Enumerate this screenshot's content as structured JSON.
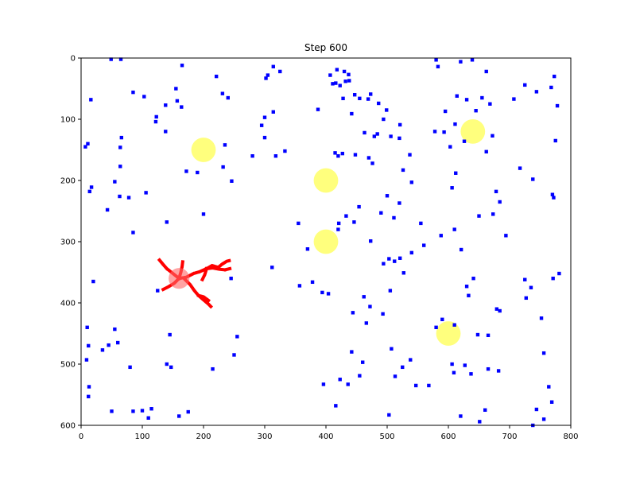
{
  "chart_data": {
    "type": "scatter",
    "title": "Step 600",
    "xlabel": "",
    "ylabel": "",
    "xlim": [
      0,
      800
    ],
    "ylim": [
      600,
      0
    ],
    "y_inverted": true,
    "grid": false,
    "xticks": [
      0,
      100,
      200,
      300,
      400,
      500,
      600,
      700,
      800
    ],
    "yticks": [
      0,
      100,
      200,
      300,
      400,
      500,
      600
    ],
    "colors": {
      "particles": "#0000ff",
      "targets": "#ffff66",
      "structure": "#ff0000",
      "seed": "#ff6666",
      "axes": "#000000",
      "background": "#ffffff"
    },
    "targets": [
      {
        "x": 200,
        "y": 150,
        "r": 20
      },
      {
        "x": 400,
        "y": 200,
        "r": 20
      },
      {
        "x": 400,
        "y": 300,
        "r": 20
      },
      {
        "x": 640,
        "y": 120,
        "r": 20
      },
      {
        "x": 600,
        "y": 450,
        "r": 20
      }
    ],
    "seed": {
      "x": 160,
      "y": 360,
      "r": 17
    },
    "structure_paths": [
      [
        [
          160,
          360
        ],
        [
          150,
          352
        ],
        [
          140,
          344
        ],
        [
          133,
          336
        ],
        [
          128,
          330
        ]
      ],
      [
        [
          160,
          360
        ],
        [
          152,
          368
        ],
        [
          142,
          374
        ],
        [
          134,
          378
        ]
      ],
      [
        [
          160,
          360
        ],
        [
          163,
          350
        ],
        [
          165,
          340
        ],
        [
          166,
          333
        ]
      ],
      [
        [
          160,
          360
        ],
        [
          172,
          358
        ],
        [
          184,
          352
        ],
        [
          194,
          349
        ],
        [
          205,
          344
        ],
        [
          214,
          339
        ],
        [
          224,
          342
        ],
        [
          230,
          337
        ],
        [
          238,
          332
        ],
        [
          242,
          331
        ]
      ],
      [
        [
          205,
          344
        ],
        [
          215,
          343
        ],
        [
          226,
          345
        ],
        [
          235,
          346
        ],
        [
          243,
          344
        ]
      ],
      [
        [
          170,
          362
        ],
        [
          178,
          370
        ],
        [
          185,
          380
        ],
        [
          192,
          388
        ],
        [
          200,
          395
        ],
        [
          208,
          402
        ],
        [
          212,
          406
        ]
      ],
      [
        [
          192,
          388
        ],
        [
          200,
          390
        ],
        [
          208,
          396
        ]
      ],
      [
        [
          205,
          344
        ],
        [
          202,
          354
        ],
        [
          198,
          362
        ]
      ]
    ],
    "particles": [
      [
        7,
        145
      ],
      [
        11,
        140
      ],
      [
        16,
        68
      ],
      [
        14,
        218
      ],
      [
        17,
        211
      ],
      [
        20,
        365
      ],
      [
        10,
        440
      ],
      [
        12,
        470
      ],
      [
        9,
        493
      ],
      [
        13,
        537
      ],
      [
        12,
        553
      ],
      [
        49,
        2
      ],
      [
        65,
        2
      ],
      [
        85,
        56
      ],
      [
        103,
        63
      ],
      [
        66,
        130
      ],
      [
        64,
        146
      ],
      [
        64,
        177
      ],
      [
        55,
        202
      ],
      [
        63,
        226
      ],
      [
        43,
        248
      ],
      [
        78,
        228
      ],
      [
        85,
        285
      ],
      [
        106,
        220
      ],
      [
        123,
        96
      ],
      [
        122,
        104
      ],
      [
        138,
        77
      ],
      [
        155,
        50
      ],
      [
        157,
        70
      ],
      [
        164,
        80
      ],
      [
        165,
        12
      ],
      [
        138,
        120
      ],
      [
        140,
        268
      ],
      [
        221,
        30
      ],
      [
        231,
        58
      ],
      [
        240,
        65
      ],
      [
        235,
        142
      ],
      [
        232,
        178
      ],
      [
        246,
        201
      ],
      [
        245,
        360
      ],
      [
        172,
        185
      ],
      [
        190,
        187
      ],
      [
        200,
        255
      ],
      [
        125,
        380
      ],
      [
        140,
        500
      ],
      [
        145,
        452
      ],
      [
        147,
        505
      ],
      [
        160,
        585
      ],
      [
        175,
        578
      ],
      [
        215,
        508
      ],
      [
        250,
        485
      ],
      [
        255,
        455
      ],
      [
        100,
        576
      ],
      [
        110,
        588
      ],
      [
        115,
        573
      ],
      [
        80,
        505
      ],
      [
        85,
        577
      ],
      [
        35,
        477
      ],
      [
        45,
        469
      ],
      [
        55,
        443
      ],
      [
        60,
        465
      ],
      [
        50,
        577
      ],
      [
        302,
        33
      ],
      [
        305,
        28
      ],
      [
        314,
        14
      ],
      [
        325,
        22
      ],
      [
        300,
        97
      ],
      [
        314,
        88
      ],
      [
        295,
        110
      ],
      [
        300,
        130
      ],
      [
        318,
        160
      ],
      [
        333,
        152
      ],
      [
        280,
        160
      ],
      [
        312,
        342
      ],
      [
        355,
        270
      ],
      [
        357,
        372
      ],
      [
        370,
        312
      ],
      [
        378,
        366
      ],
      [
        394,
        383
      ],
      [
        404,
        385
      ],
      [
        411,
        42
      ],
      [
        418,
        19
      ],
      [
        423,
        45
      ],
      [
        430,
        22
      ],
      [
        428,
        66
      ],
      [
        437,
        27
      ],
      [
        438,
        37
      ],
      [
        416,
        41
      ],
      [
        432,
        38
      ],
      [
        387,
        84
      ],
      [
        407,
        28
      ],
      [
        442,
        91
      ],
      [
        447,
        60
      ],
      [
        455,
        66
      ],
      [
        469,
        67
      ],
      [
        473,
        59
      ],
      [
        486,
        74
      ],
      [
        479,
        128
      ],
      [
        484,
        124
      ],
      [
        494,
        100
      ],
      [
        499,
        85
      ],
      [
        506,
        128
      ],
      [
        521,
        109
      ],
      [
        537,
        158
      ],
      [
        526,
        183
      ],
      [
        540,
        203
      ],
      [
        520,
        131
      ],
      [
        415,
        155
      ],
      [
        420,
        160
      ],
      [
        427,
        156
      ],
      [
        463,
        122
      ],
      [
        448,
        158
      ],
      [
        476,
        172
      ],
      [
        470,
        163
      ],
      [
        490,
        253
      ],
      [
        500,
        225
      ],
      [
        520,
        237
      ],
      [
        511,
        261
      ],
      [
        555,
        270
      ],
      [
        560,
        306
      ],
      [
        540,
        318
      ],
      [
        494,
        336
      ],
      [
        503,
        328
      ],
      [
        512,
        332
      ],
      [
        521,
        327
      ],
      [
        527,
        351
      ],
      [
        505,
        380
      ],
      [
        473,
        299
      ],
      [
        454,
        243
      ],
      [
        446,
        268
      ],
      [
        433,
        258
      ],
      [
        421,
        270
      ],
      [
        420,
        280
      ],
      [
        462,
        390
      ],
      [
        444,
        416
      ],
      [
        472,
        406
      ],
      [
        466,
        433
      ],
      [
        493,
        418
      ],
      [
        507,
        475
      ],
      [
        525,
        505
      ],
      [
        538,
        493
      ],
      [
        547,
        535
      ],
      [
        513,
        520
      ],
      [
        460,
        497
      ],
      [
        455,
        519
      ],
      [
        442,
        480
      ],
      [
        423,
        525
      ],
      [
        416,
        568
      ],
      [
        396,
        533
      ],
      [
        436,
        533
      ],
      [
        503,
        583
      ],
      [
        568,
        535
      ],
      [
        588,
        290
      ],
      [
        603,
        145
      ],
      [
        614,
        62
      ],
      [
        630,
        68
      ],
      [
        610,
        280
      ],
      [
        621,
        313
      ],
      [
        655,
        65
      ],
      [
        668,
        75
      ],
      [
        672,
        127
      ],
      [
        662,
        153
      ],
      [
        650,
        258
      ],
      [
        673,
        255
      ],
      [
        684,
        235
      ],
      [
        694,
        290
      ],
      [
        678,
        218
      ],
      [
        707,
        67
      ],
      [
        725,
        44
      ],
      [
        744,
        55
      ],
      [
        717,
        180
      ],
      [
        738,
        198
      ],
      [
        768,
        48
      ],
      [
        773,
        30
      ],
      [
        778,
        78
      ],
      [
        775,
        135
      ],
      [
        770,
        223
      ],
      [
        772,
        228
      ],
      [
        781,
        352
      ],
      [
        771,
        360
      ],
      [
        752,
        425
      ],
      [
        727,
        392
      ],
      [
        735,
        375
      ],
      [
        725,
        362
      ],
      [
        756,
        482
      ],
      [
        764,
        537
      ],
      [
        769,
        562
      ],
      [
        744,
        574
      ],
      [
        756,
        590
      ],
      [
        738,
        600
      ],
      [
        641,
        360
      ],
      [
        630,
        373
      ],
      [
        633,
        388
      ],
      [
        610,
        436
      ],
      [
        590,
        427
      ],
      [
        580,
        440
      ],
      [
        606,
        500
      ],
      [
        609,
        514
      ],
      [
        627,
        502
      ],
      [
        637,
        516
      ],
      [
        651,
        594
      ],
      [
        660,
        575
      ],
      [
        665,
        453
      ],
      [
        665,
        508
      ],
      [
        679,
        410
      ],
      [
        682,
        511
      ],
      [
        684,
        413
      ],
      [
        648,
        452
      ],
      [
        620,
        585
      ],
      [
        580,
        3
      ],
      [
        583,
        14
      ],
      [
        620,
        6
      ],
      [
        639,
        3
      ],
      [
        662,
        22
      ],
      [
        645,
        86
      ],
      [
        611,
        108
      ],
      [
        595,
        87
      ],
      [
        578,
        120
      ],
      [
        593,
        121
      ],
      [
        626,
        136
      ],
      [
        612,
        188
      ],
      [
        606,
        212
      ]
    ]
  }
}
